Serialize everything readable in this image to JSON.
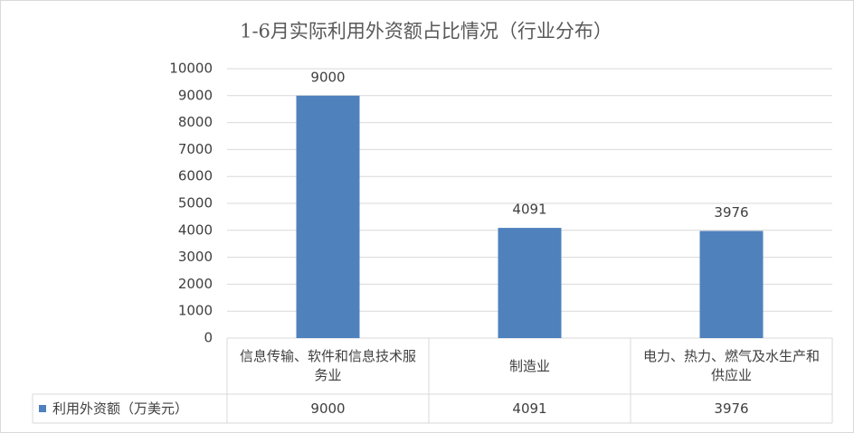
{
  "chart_data": {
    "type": "bar",
    "title": "1-6月实际利用外资额占比情况（行业分布）",
    "categories": [
      "信息传输、软件和信息技术服务业",
      "制造业",
      "电力、热力、燃气及水生产和供应业"
    ],
    "series": [
      {
        "name": "利用外资额（万美元）",
        "color": "#4f81bd",
        "values": [
          9000,
          4091,
          3976
        ]
      }
    ],
    "ylim": [
      0,
      10000
    ],
    "yticks": [
      0,
      1000,
      2000,
      3000,
      4000,
      5000,
      6000,
      7000,
      8000,
      9000,
      10000
    ],
    "grid": true,
    "data_table": true
  }
}
